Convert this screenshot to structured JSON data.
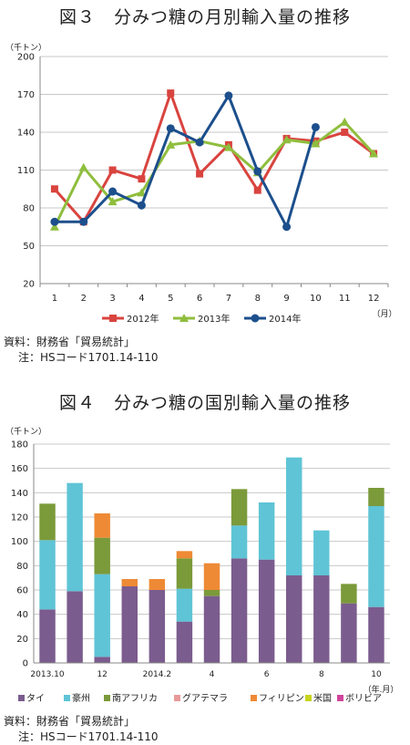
{
  "chart1": {
    "title": "図３　分みつ糖の月別輸入量の推移",
    "y_unit": "（千トン）",
    "x_unit": "（月）",
    "source": "資料：財務省「貿易統計」",
    "note": "注：HSコード1701.14-110"
  },
  "chart2": {
    "title": "図４　分みつ糖の国別輸入量の推移",
    "y_unit": "（千トン）",
    "x_unit": "（年.月）",
    "source": "資料：財務省「貿易統計」",
    "note": "注：HSコード1701.14-110"
  },
  "colors": {
    "2012": "#d9443f",
    "2013": "#8fbe3e",
    "2014": "#1c4f8c",
    "タイ": "#7b5c8e",
    "豪州": "#5fc4d6",
    "南アフリカ": "#7b9a3a",
    "グアテマラ": "#e79a9a",
    "フィリピン": "#ee8a35",
    "米国": "#c8d41e",
    "ボリビア": "#d0449c"
  },
  "chart_data": [
    {
      "type": "line",
      "title": "図３　分みつ糖の月別輸入量の推移",
      "x": [
        1,
        2,
        3,
        4,
        5,
        6,
        7,
        8,
        9,
        10,
        11,
        12
      ],
      "ylim": [
        20,
        200
      ],
      "yticks": [
        20,
        50,
        80,
        110,
        140,
        170,
        200
      ],
      "ylabel": "（千トン）",
      "xlabel": "（月）",
      "grid": true,
      "legend": "bottom",
      "series": [
        {
          "name": "2012年",
          "marker": "square",
          "values": [
            95,
            69,
            110,
            103,
            171,
            107,
            130,
            94,
            135,
            133,
            140,
            123
          ]
        },
        {
          "name": "2013年",
          "marker": "triangle",
          "values": [
            65,
            112,
            85,
            92,
            130,
            133,
            128,
            108,
            134,
            131,
            148,
            123
          ]
        },
        {
          "name": "2014年",
          "marker": "circle",
          "values": [
            69,
            69,
            93,
            82,
            143,
            132,
            169,
            109,
            65,
            144,
            null,
            null
          ]
        }
      ]
    },
    {
      "type": "bar",
      "stacked": true,
      "title": "図４　分みつ糖の国別輸入量の推移",
      "categories": [
        "2013.10",
        "",
        "12",
        "",
        "2014.2",
        "",
        "4",
        "",
        "6",
        "",
        "8",
        "",
        "10"
      ],
      "ylim": [
        0,
        180
      ],
      "yticks": [
        0,
        20,
        40,
        60,
        80,
        100,
        120,
        140,
        160,
        180
      ],
      "ylabel": "（千トン）",
      "xlabel": "（年.月）",
      "grid": true,
      "legend": "bottom",
      "series": [
        {
          "name": "タイ",
          "values": [
            44,
            59,
            5,
            63,
            60,
            34,
            55,
            86,
            85,
            72,
            72,
            49,
            46
          ]
        },
        {
          "name": "豪州",
          "values": [
            57,
            89,
            68,
            0,
            0,
            27,
            0,
            27,
            47,
            97,
            37,
            0,
            83
          ]
        },
        {
          "name": "南アフリカ",
          "values": [
            30,
            0,
            30,
            0,
            0,
            25,
            5,
            30,
            0,
            0,
            0,
            16,
            15
          ]
        },
        {
          "name": "グアテマラ",
          "values": [
            0,
            0,
            0,
            0,
            0,
            0,
            0,
            0,
            0,
            0,
            0,
            0,
            0
          ]
        },
        {
          "name": "フィリピン",
          "values": [
            0,
            0,
            20,
            6,
            9,
            6,
            22,
            0,
            0,
            0,
            0,
            0,
            0
          ]
        },
        {
          "name": "米国",
          "values": [
            0,
            0,
            0,
            0,
            0,
            0,
            0,
            0,
            0,
            0,
            0,
            0,
            0
          ]
        },
        {
          "name": "ボリビア",
          "values": [
            0,
            0,
            0,
            0,
            0,
            0,
            0,
            0,
            0,
            0,
            0,
            0,
            0
          ]
        }
      ]
    }
  ]
}
